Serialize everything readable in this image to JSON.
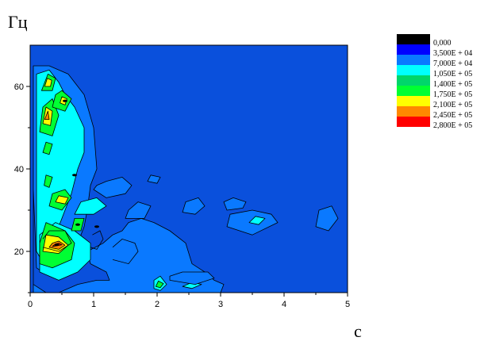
{
  "chart_data": {
    "type": "heatmap",
    "title": "",
    "xlabel": "c",
    "ylabel": "Гц",
    "xlim": [
      0,
      5
    ],
    "ylim": [
      10,
      70
    ],
    "x_ticks": [
      "0",
      "1",
      "2",
      "3",
      "4",
      "5"
    ],
    "y_ticks": [
      "20",
      "40",
      "60"
    ],
    "grid": false,
    "legend_position": "right",
    "legend": [
      {
        "label": "0,000",
        "color": "#000000"
      },
      {
        "label": "3,500E + 04",
        "color": "#0000ff"
      },
      {
        "label": "7,000E + 04",
        "color": "#0a79ff"
      },
      {
        "label": "1,050E + 05",
        "color": "#00ffff"
      },
      {
        "label": "1,400E + 05",
        "color": "#00d66b"
      },
      {
        "label": "1,750E + 05",
        "color": "#00ff33"
      },
      {
        "label": "2,100E + 05",
        "color": "#ffff00"
      },
      {
        "label": "2,450E + 05",
        "color": "#ff8800"
      },
      {
        "label": "2,800E + 05",
        "color": "#ff0000"
      }
    ],
    "background_level_color": "#0a50dc",
    "regions": [
      {
        "x": [
          0.05,
          0.45,
          0.75,
          1.05,
          1.25,
          1.2,
          0.95,
          0.9,
          1.15,
          1.3,
          1.45,
          1.55,
          1.75,
          1.95,
          2.2,
          2.45,
          2.55,
          2.75,
          2.9,
          3.05,
          3.0,
          2.45,
          2.15,
          1.7,
          1.35,
          0.95,
          0.55,
          0.25,
          0.05,
          0.05,
          0.05
        ],
        "y": [
          10,
          10,
          12,
          13,
          13,
          15,
          17,
          20,
          22,
          24,
          25,
          27,
          28,
          27,
          25,
          22,
          17,
          15,
          13,
          12,
          10,
          10,
          10,
          10,
          10,
          10,
          10,
          10,
          12,
          30,
          64
        ],
        "color": "#0a79ff",
        "open_top": true
      },
      {
        "x": [
          0.05,
          0.3,
          0.6,
          0.85,
          1.0,
          1.05,
          0.95,
          0.9,
          0.85,
          0.75,
          0.55,
          0.3,
          0.1,
          0.05
        ],
        "y": [
          65,
          65,
          63,
          58,
          50,
          40,
          36,
          30,
          26,
          22,
          18,
          14,
          16,
          35
        ],
        "color": "#0a79ff"
      },
      {
        "x": [
          0.1,
          0.3,
          0.45,
          0.55,
          0.7,
          0.85,
          0.85,
          0.75,
          0.65,
          0.55,
          0.4,
          0.25,
          0.1
        ],
        "y": [
          63,
          64,
          61,
          58,
          55,
          50,
          44,
          40,
          34,
          30,
          24,
          16,
          20
        ],
        "color": "#00ffff"
      },
      {
        "x": [
          0.15,
          0.45,
          0.75,
          0.95,
          0.95,
          0.7,
          0.4,
          0.15
        ],
        "y": [
          15,
          13,
          15,
          18,
          22,
          25,
          27,
          24
        ],
        "color": "#00ffff"
      },
      {
        "x": [
          0.15,
          0.35,
          0.65,
          0.7,
          0.55,
          0.25,
          0.15
        ],
        "y": [
          17,
          16,
          18,
          22,
          25,
          27,
          22
        ],
        "color": "#00ff33"
      },
      {
        "x": [
          0.2,
          0.45,
          0.6,
          0.45,
          0.25
        ],
        "y": [
          20,
          19.5,
          21.5,
          23.5,
          24
        ],
        "color": "#ffff00"
      },
      {
        "x": [
          0.3,
          0.45,
          0.55,
          0.45,
          0.35
        ],
        "y": [
          21,
          20.5,
          21.5,
          22.5,
          22
        ],
        "color": "#ff8800"
      },
      {
        "x": [
          0.35,
          0.5,
          0.45,
          0.4
        ],
        "y": [
          21.2,
          21.6,
          22.0,
          21.8
        ],
        "color": "#ff0000"
      },
      {
        "x": [
          0.3,
          0.5,
          0.65,
          0.55,
          0.35
        ],
        "y": [
          31,
          30,
          33,
          35,
          34
        ],
        "color": "#00ff33"
      },
      {
        "x": [
          0.4,
          0.55,
          0.6,
          0.45
        ],
        "y": [
          32,
          31.5,
          33,
          33.5
        ],
        "color": "#ffff00"
      },
      {
        "x": [
          0.65,
          0.8,
          0.85,
          0.7
        ],
        "y": [
          25,
          25,
          28,
          28
        ],
        "color": "#00ff33"
      },
      {
        "x": [
          0.22,
          0.3,
          0.35,
          0.25
        ],
        "y": [
          36,
          35.5,
          38,
          38.5
        ],
        "color": "#00ff33"
      },
      {
        "x": [
          0.2,
          0.3,
          0.35,
          0.25
        ],
        "y": [
          44,
          43.5,
          46,
          46.5
        ],
        "color": "#00ff33"
      },
      {
        "x": [
          0.15,
          0.35,
          0.45,
          0.35,
          0.2
        ],
        "y": [
          49,
          48,
          53,
          57,
          55
        ],
        "color": "#00ff33"
      },
      {
        "x": [
          0.2,
          0.32,
          0.35,
          0.25
        ],
        "y": [
          51,
          50.5,
          54,
          55
        ],
        "color": "#ffff00"
      },
      {
        "x": [
          0.23,
          0.3,
          0.28
        ],
        "y": [
          52,
          52,
          54
        ],
        "color": "#ff8800"
      },
      {
        "x": [
          0.35,
          0.55,
          0.65,
          0.5,
          0.4
        ],
        "y": [
          55,
          54,
          57,
          59,
          58
        ],
        "color": "#00ff33"
      },
      {
        "x": [
          0.47,
          0.55,
          0.58,
          0.5
        ],
        "y": [
          56,
          55.5,
          57,
          57.5
        ],
        "color": "#ffff00"
      },
      {
        "x": [
          0.18,
          0.35,
          0.4,
          0.28
        ],
        "y": [
          59,
          59,
          62,
          63
        ],
        "color": "#00ff33"
      },
      {
        "x": [
          0.23,
          0.32,
          0.34,
          0.27
        ],
        "y": [
          60,
          60,
          61.5,
          62
        ],
        "color": "#ffff00"
      },
      {
        "x": [
          0.7,
          1.0,
          1.2,
          1.05,
          0.8
        ],
        "y": [
          29,
          29,
          31,
          33,
          32
        ],
        "color": "#00ffff"
      },
      {
        "x": [
          1.95,
          2.05,
          2.15,
          2.05,
          1.95
        ],
        "y": [
          11,
          10.5,
          12,
          14,
          13
        ],
        "color": "#00ffff"
      },
      {
        "x": [
          1.98,
          2.05,
          2.1,
          2.02
        ],
        "y": [
          11.5,
          11.2,
          12.2,
          12.8
        ],
        "color": "#00ff33"
      },
      {
        "x": [
          2.4,
          2.55,
          2.7,
          2.55
        ],
        "y": [
          11.5,
          11,
          12,
          12.5
        ],
        "color": "#00ffff"
      },
      {
        "x": [
          1.0,
          1.2,
          1.5,
          1.6,
          1.45,
          1.2,
          1.05
        ],
        "y": [
          35,
          33,
          34,
          36,
          38,
          37,
          36
        ],
        "color": "#0a79ff"
      },
      {
        "x": [
          1.5,
          1.8,
          1.9,
          1.7,
          1.55
        ],
        "y": [
          28,
          28,
          31,
          32,
          30
        ],
        "color": "#0a79ff"
      },
      {
        "x": [
          2.4,
          2.6,
          2.75,
          2.65,
          2.45
        ],
        "y": [
          29.5,
          29,
          31,
          33,
          32
        ],
        "color": "#0a79ff"
      },
      {
        "x": [
          3.1,
          3.35,
          3.4,
          3.2,
          3.05
        ],
        "y": [
          30,
          30.5,
          32,
          33,
          32
        ],
        "color": "#0a79ff"
      },
      {
        "x": [
          3.1,
          3.5,
          3.9,
          3.8,
          3.5,
          3.15
        ],
        "y": [
          26,
          24,
          27,
          29,
          30,
          29
        ],
        "color": "#0a79ff"
      },
      {
        "x": [
          3.45,
          3.6,
          3.7,
          3.55
        ],
        "y": [
          27,
          26.5,
          28,
          28.5
        ],
        "color": "#00ffff"
      },
      {
        "x": [
          4.5,
          4.7,
          4.85,
          4.75,
          4.55
        ],
        "y": [
          26,
          25,
          28,
          31,
          30
        ],
        "color": "#0a79ff"
      },
      {
        "x": [
          1.85,
          2.0,
          2.05,
          1.9
        ],
        "y": [
          37,
          36.5,
          38,
          38.5
        ],
        "color": "#0a79ff"
      },
      {
        "x": [
          2.2,
          2.6,
          2.9,
          2.8,
          2.4,
          2.2
        ],
        "y": [
          13,
          12,
          13.5,
          15,
          15,
          14
        ],
        "color": "#0a79ff"
      }
    ],
    "contour_lines": [
      {
        "x": [
          1.3,
          1.55,
          1.7,
          1.65,
          1.45,
          1.3
        ],
        "y": [
          18,
          17,
          20,
          22,
          23,
          21
        ]
      },
      {
        "x": [
          0.2,
          0.45,
          0.65,
          0.55,
          0.3,
          0.2
        ],
        "y": [
          21,
          20,
          22,
          25,
          25,
          23
        ]
      },
      {
        "x": [
          0.95,
          1.05,
          1.15,
          1.1,
          0.98
        ],
        "y": [
          21,
          20.5,
          23,
          25,
          24
        ]
      }
    ],
    "small_dark_spots": [
      {
        "x": 0.42,
        "y": 21.6,
        "color": "#000000"
      },
      {
        "x": 0.55,
        "y": 56.5,
        "color": "#000000"
      },
      {
        "x": 0.75,
        "y": 26.5,
        "color": "#000000"
      },
      {
        "x": 1.05,
        "y": 26.0,
        "color": "#000000"
      },
      {
        "x": 0.7,
        "y": 38.5,
        "color": "#000000"
      }
    ]
  }
}
